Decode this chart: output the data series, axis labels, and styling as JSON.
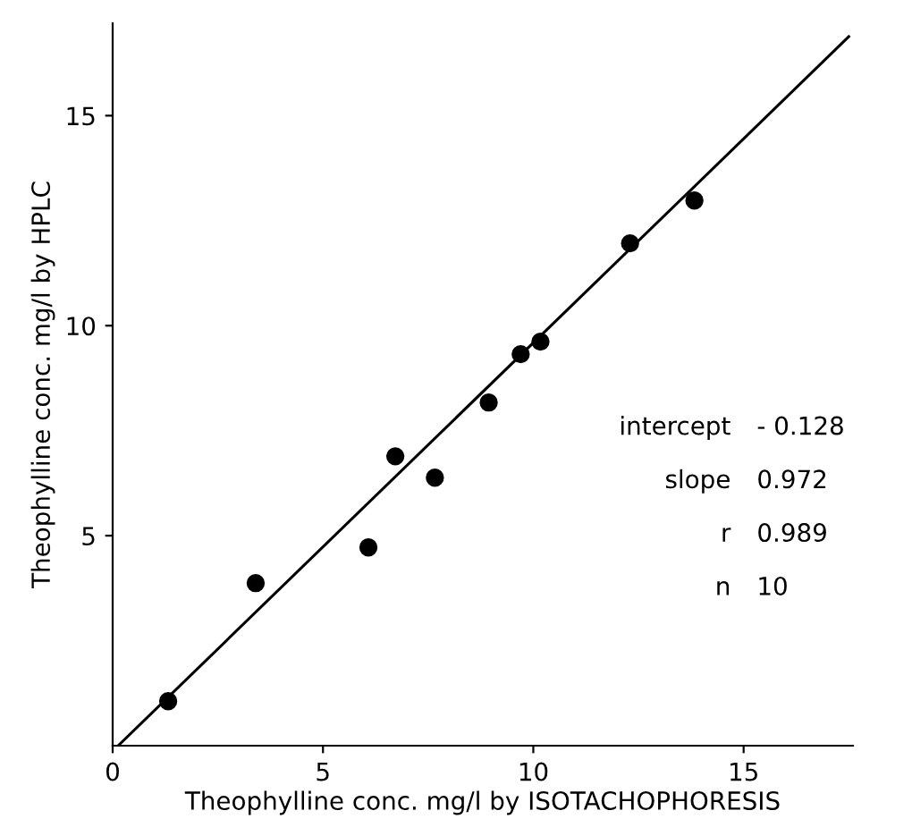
{
  "chart_data": {
    "type": "scatter",
    "xlabel": "Theophylline conc. mg/l by ISOTACHOPHORESIS",
    "ylabel": "Theophylline conc. mg/l by HPLC",
    "xlim": [
      0,
      17.6
    ],
    "ylim": [
      0,
      17.2
    ],
    "xticks": [
      0,
      5,
      10,
      15
    ],
    "yticks": [
      5,
      10,
      15
    ],
    "grid": false,
    "legend": false,
    "series": [
      {
        "marker": "circle",
        "color": "#000000",
        "x": [
          1.32,
          3.4,
          6.08,
          6.72,
          7.66,
          8.94,
          9.7,
          10.17,
          12.3,
          13.83
        ],
        "values": [
          1.06,
          3.87,
          4.72,
          6.89,
          6.38,
          8.17,
          9.32,
          9.62,
          11.96,
          12.98
        ]
      },
      {
        "type": "line",
        "color": "#000000",
        "x": [
          0.13,
          17.5
        ],
        "values": [
          0,
          16.88
        ],
        "line_style": "solid",
        "marker": "none"
      }
    ],
    "annotations": [
      "intercept",
      "- 0.128",
      "slope",
      "0.972",
      "r",
      "0.989",
      "n",
      "10"
    ]
  }
}
